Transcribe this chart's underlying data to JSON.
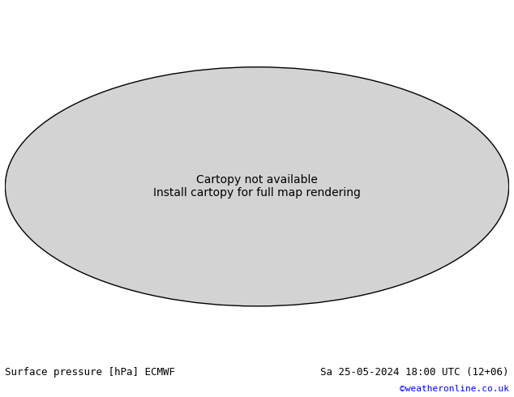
{
  "title_left": "Surface pressure [hPa] ECMWF",
  "title_right": "Sa 25-05-2024 18:00 UTC (12+06)",
  "credit": "©weatheronline.co.uk",
  "credit_color": "#0000ff",
  "background_color": "#ffffff",
  "map_background": "#d3d3d3",
  "ocean_color": "#d3d3d3",
  "land_color": "#90ee90",
  "contour_interval": 4,
  "pressure_min": 920,
  "pressure_max": 1040,
  "black_contour_value": 1013,
  "blue_contour_color": "#0000cc",
  "red_contour_color": "#cc0000",
  "black_contour_color": "#000000",
  "label_fontsize": 6,
  "title_fontsize": 9,
  "fig_width": 6.34,
  "fig_height": 4.9,
  "dpi": 100
}
